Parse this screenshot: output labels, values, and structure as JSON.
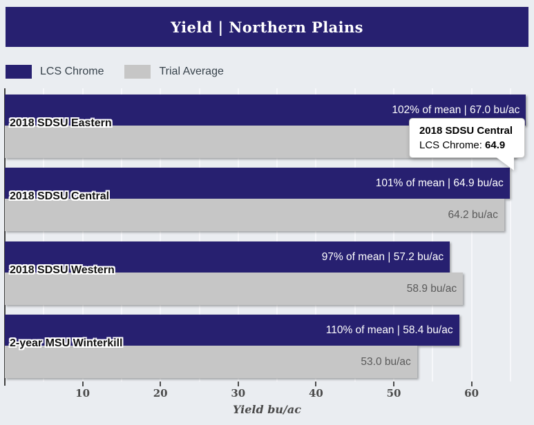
{
  "chart_data": {
    "type": "bar",
    "orientation": "horizontal",
    "title": "Yield | Northern Plains",
    "categories": [
      "2018 SDSU Eastern",
      "2018 SDSU Central",
      "2018 SDSU Western",
      "2-year MSU Winterkill"
    ],
    "series": [
      {
        "name": "LCS Chrome",
        "color": "#272070",
        "values": [
          67.0,
          64.9,
          57.2,
          58.4
        ],
        "bar_labels": [
          "102% of mean | 67.0 bu/ac",
          "101% of mean | 64.9 bu/ac",
          "97% of mean | 57.2 bu/ac",
          "110% of mean | 58.4 bu/ac"
        ]
      },
      {
        "name": "Trial Average",
        "color": "#c6c6c6",
        "values": [
          65.7,
          64.2,
          58.9,
          53.0
        ],
        "bar_labels": [
          "",
          "64.2 bu/ac",
          "58.9 bu/ac",
          "53.0 bu/ac"
        ]
      }
    ],
    "xlabel": "Yield bu/ac",
    "xticks": [
      10,
      20,
      30,
      40,
      50,
      60
    ],
    "xlim": [
      0,
      67.3
    ],
    "gridline_interval": 5,
    "legend_position": "top-left",
    "header_background": "#272070",
    "page_background": "#eaedf1"
  },
  "tooltip": {
    "category": "2018 SDSU Central",
    "series_label": "LCS Chrome: ",
    "value": "64.9"
  }
}
